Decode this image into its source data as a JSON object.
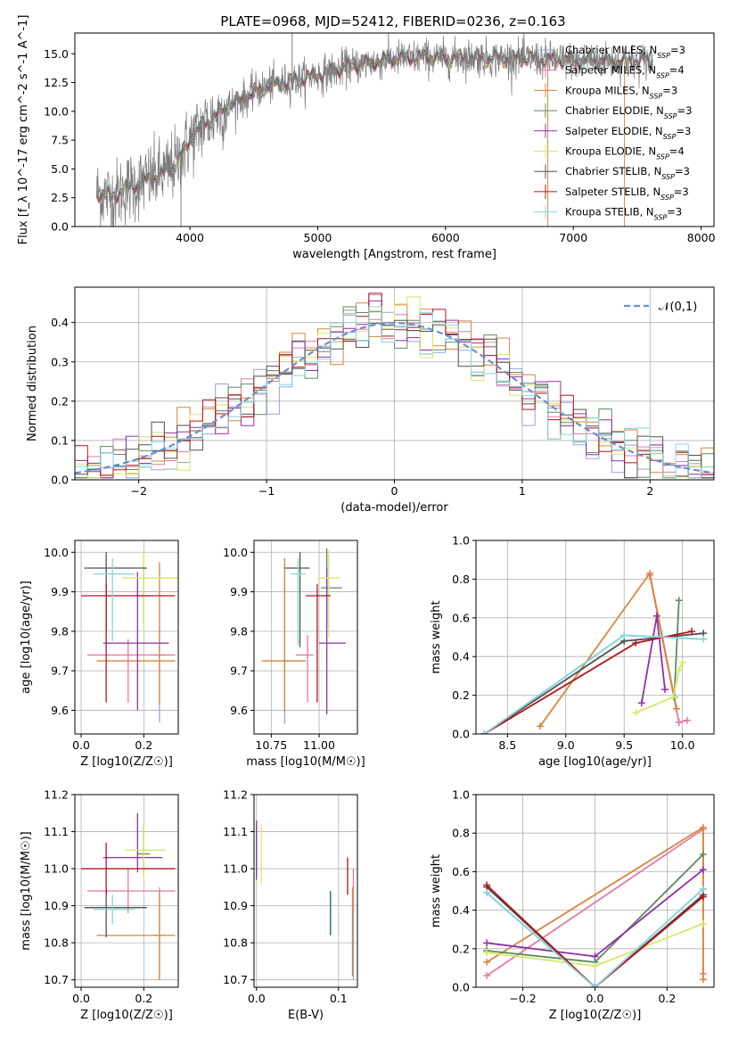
{
  "title": "PLATE=0968, MJD=52412, FIBERID=0236, z=0.163",
  "colors": {
    "Chabrier MILES": "#8fa8cf",
    "Salpeter MILES": "#e27aa8",
    "Kroupa MILES": "#d7853a",
    "Chabrier ELODIE": "#5e8a5e",
    "Salpeter ELODIE": "#9030a8",
    "Kroupa ELODIE": "#d6e86a",
    "Chabrier STELIB": "#505050",
    "Salpeter STELIB": "#b0161c",
    "Kroupa STELIB": "#86d6dc",
    "gauss": "#6a8fd0"
  },
  "chart_data": [
    {
      "type": "line",
      "id": "spectrum",
      "title": "PLATE=0968, MJD=52412, FIBERID=0236, z=0.163",
      "xlabel": "wavelength [Angstrom, rest frame]",
      "ylabel": "Flux [f_λ 10^-17 erg cm^-2 s^-1 A^-1]",
      "xlim": [
        3100,
        8100
      ],
      "ylim": [
        0,
        16.8
      ],
      "xticks": [
        4000,
        5000,
        6000,
        7000,
        8000
      ],
      "yticks": [
        0.0,
        2.5,
        5.0,
        7.5,
        10.0,
        12.5,
        15.0
      ],
      "legend_position": "right",
      "legend": [
        {
          "model": "Chabrier MILES",
          "label": "Chabrier MILES, N",
          "n": "3"
        },
        {
          "model": "Salpeter MILES",
          "label": "Salpeter MILES, N",
          "n": "4"
        },
        {
          "model": "Kroupa MILES",
          "label": "Kroupa MILES, N",
          "n": "3"
        },
        {
          "model": "Chabrier ELODIE",
          "label": "Chabrier ELODIE, N",
          "n": "3"
        },
        {
          "model": "Salpeter ELODIE",
          "label": "Salpeter ELODIE, N",
          "n": "3"
        },
        {
          "model": "Kroupa ELODIE",
          "label": "Kroupa ELODIE, N",
          "n": "4"
        },
        {
          "model": "Chabrier STELIB",
          "label": "Chabrier STELIB, N",
          "n": "3"
        },
        {
          "model": "Salpeter STELIB",
          "label": "Salpeter STELIB, N",
          "n": "3"
        },
        {
          "model": "Kroupa STELIB",
          "label": "Kroupa STELIB, N",
          "n": "3"
        }
      ],
      "n_subscript": "SSP",
      "continuum": {
        "x": [
          3270,
          3400,
          3500,
          3600,
          3700,
          3800,
          3900,
          4000,
          4100,
          4200,
          4300,
          4400,
          4500,
          4600,
          4700,
          4800,
          4900,
          5000,
          5100,
          5200,
          5300,
          5400,
          5500,
          5600,
          5700,
          5800,
          5900,
          6000,
          6200,
          6400,
          6600,
          6800,
          7000,
          7200,
          7400,
          7600
        ],
        "y": [
          2.9,
          2.6,
          3.3,
          3.7,
          4.2,
          4.6,
          5.6,
          7.5,
          8.8,
          9.6,
          10.5,
          11.0,
          11.6,
          12.2,
          12.4,
          12.6,
          12.9,
          13.2,
          13.4,
          13.8,
          14.0,
          14.2,
          14.4,
          14.6,
          14.6,
          14.7,
          14.7,
          14.6,
          14.7,
          14.6,
          14.6,
          14.5,
          14.4,
          14.4,
          14.3,
          14.4
        ]
      },
      "data_range": [
        3270,
        7620
      ]
    },
    {
      "type": "bar",
      "id": "residuals",
      "xlabel": "(data-model)/error",
      "ylabel": "Normed distribution",
      "xlim": [
        -2.5,
        2.5
      ],
      "ylim": [
        0,
        0.49
      ],
      "xticks": [
        -2,
        -1,
        0,
        1,
        2
      ],
      "yticks": [
        0.0,
        0.1,
        0.2,
        0.3,
        0.4
      ],
      "legend_label": "𝒩(0,1)",
      "legend_position": "top-right",
      "bin_width": 0.1,
      "gaussian": {
        "mu": 0,
        "sigma": 1
      }
    },
    {
      "type": "scatter",
      "id": "age-vs-Z",
      "xlabel": "Z [log10(Z/Z☉)]",
      "ylabel": "age [log10(age/yr)]",
      "xlim": [
        -0.02,
        0.31
      ],
      "ylim": [
        9.54,
        10.03
      ],
      "xticks": [
        0.0,
        0.2
      ],
      "yticks": [
        9.6,
        9.7,
        9.8,
        9.9,
        10.0
      ],
      "points": [
        {
          "model": "Chabrier MILES",
          "x": 0.25,
          "y": 9.74,
          "xerr": [
            0.02,
            0.02
          ],
          "yerr": [
            0.17,
            0.07
          ]
        },
        {
          "model": "Salpeter MILES",
          "x": 0.15,
          "y": 9.74,
          "xerr": [
            0.13,
            0.15
          ],
          "yerr": [
            0.12,
            0.04
          ]
        },
        {
          "model": "Kroupa MILES",
          "x": 0.25,
          "y": 9.725,
          "xerr": [
            0.2,
            0.05
          ],
          "yerr": [
            0.11,
            0.25
          ]
        },
        {
          "model": "Chabrier ELODIE",
          "x": 0.2,
          "y": 9.89,
          "xerr": [
            0.02,
            0.02
          ],
          "yerr": [
            0.07,
            0.08
          ]
        },
        {
          "model": "Salpeter ELODIE",
          "x": 0.18,
          "y": 9.77,
          "xerr": [
            0.11,
            0.1
          ],
          "yerr": [
            0.17,
            0.18
          ]
        },
        {
          "model": "Kroupa ELODIE",
          "x": 0.2,
          "y": 9.935,
          "xerr": [
            0.07,
            0.11
          ],
          "yerr": [
            0.14,
            0.07
          ]
        },
        {
          "model": "Chabrier STELIB",
          "x": 0.08,
          "y": 9.96,
          "xerr": [
            0.07,
            0.13
          ],
          "yerr": [
            0.16,
            0.04
          ]
        },
        {
          "model": "Salpeter STELIB",
          "x": 0.08,
          "y": 9.89,
          "xerr": [
            0.08,
            0.22
          ],
          "yerr": [
            0.27,
            0.03
          ]
        },
        {
          "model": "Kroupa STELIB",
          "x": 0.1,
          "y": 9.945,
          "xerr": [
            0.06,
            0.07
          ],
          "yerr": [
            0.17,
            0.04
          ]
        }
      ]
    },
    {
      "type": "scatter",
      "id": "age-vs-mass",
      "xlabel": "mass [log10(M/M☉)]",
      "ylabel": "",
      "xlim": [
        10.66,
        11.2
      ],
      "ylim": [
        9.54,
        10.03
      ],
      "xticks": [
        10.75,
        11.0
      ],
      "xticklabels": [
        "10.75",
        "11.00"
      ],
      "yticks": [
        9.6,
        9.7,
        9.8,
        9.9,
        10.0
      ],
      "points": [
        {
          "model": "Chabrier MILES",
          "x": 10.82,
          "y": 9.725,
          "xerr": [
            0.02,
            0.02
          ],
          "yerr": [
            0.16,
            0.26
          ]
        },
        {
          "model": "Salpeter MILES",
          "x": 10.94,
          "y": 9.74,
          "xerr": [
            0.06,
            0.03
          ],
          "yerr": [
            0.12,
            0.05
          ]
        },
        {
          "model": "Kroupa MILES",
          "x": 10.82,
          "y": 9.725,
          "xerr": [
            0.12,
            0.11
          ],
          "yerr": [
            0.13,
            0.26
          ]
        },
        {
          "model": "Chabrier ELODIE",
          "x": 11.04,
          "y": 9.91,
          "xerr": [
            0.03,
            0.08
          ],
          "yerr": [
            0.09,
            0.1
          ]
        },
        {
          "model": "Salpeter ELODIE",
          "x": 11.04,
          "y": 9.77,
          "xerr": [
            0.04,
            0.1
          ],
          "yerr": [
            0.18,
            0.19
          ]
        },
        {
          "model": "Kroupa ELODIE",
          "x": 11.05,
          "y": 9.935,
          "xerr": [
            0.06,
            0.06
          ],
          "yerr": [
            0.15,
            0.07
          ]
        },
        {
          "model": "Chabrier STELIB",
          "x": 10.9,
          "y": 9.96,
          "xerr": [
            0.08,
            0.05
          ],
          "yerr": [
            0.2,
            0.04
          ]
        },
        {
          "model": "Salpeter STELIB",
          "x": 10.99,
          "y": 9.89,
          "xerr": [
            0.06,
            0.07
          ],
          "yerr": [
            0.27,
            0.03
          ]
        },
        {
          "model": "Kroupa STELIB",
          "x": 10.89,
          "y": 9.945,
          "xerr": [
            0.04,
            0.04
          ],
          "yerr": [
            0.18,
            0.04
          ]
        }
      ]
    },
    {
      "type": "line",
      "id": "massweight-vs-age",
      "xlabel": "age [log10(age/yr)]",
      "ylabel": "mass weight",
      "xlim": [
        8.23,
        10.27
      ],
      "ylim": [
        0,
        1.0
      ],
      "xticks": [
        8.5,
        9.0,
        9.5,
        10.0
      ],
      "yticks": [
        0.0,
        0.2,
        0.4,
        0.6,
        0.8,
        1.0
      ],
      "series": [
        {
          "model": "Chabrier MILES",
          "x": [
            8.3,
            9.5,
            10.18
          ],
          "y": [
            0.0,
            0.51,
            0.49
          ]
        },
        {
          "model": "Salpeter MILES",
          "x": [
            9.72,
            9.97,
            10.04
          ],
          "y": [
            0.82,
            0.06,
            0.07
          ]
        },
        {
          "model": "Kroupa MILES",
          "x": [
            8.78,
            9.72,
            9.95
          ],
          "y": [
            0.04,
            0.83,
            0.13
          ]
        },
        {
          "model": "Chabrier ELODIE",
          "x": [
            9.93,
            9.97
          ],
          "y": [
            0.19,
            0.69
          ]
        },
        {
          "model": "Salpeter ELODIE",
          "x": [
            9.65,
            9.78,
            9.85
          ],
          "y": [
            0.16,
            0.61,
            0.23
          ]
        },
        {
          "model": "Kroupa ELODIE",
          "x": [
            9.6,
            9.92,
            9.97,
            10.0
          ],
          "y": [
            0.11,
            0.19,
            0.33,
            0.37
          ]
        },
        {
          "model": "Chabrier STELIB",
          "x": [
            8.3,
            9.5,
            10.18
          ],
          "y": [
            0.0,
            0.48,
            0.52
          ]
        },
        {
          "model": "Salpeter STELIB",
          "x": [
            8.3,
            9.6,
            10.08
          ],
          "y": [
            0.0,
            0.47,
            0.53
          ]
        },
        {
          "model": "Kroupa STELIB",
          "x": [
            8.3,
            9.5,
            10.18
          ],
          "y": [
            0.0,
            0.51,
            0.49
          ]
        }
      ]
    },
    {
      "type": "scatter",
      "id": "mass-vs-Z",
      "xlabel": "Z [log10(Z/Z☉)]",
      "ylabel": "mass [log10(M/M☉)]",
      "xlim": [
        -0.02,
        0.31
      ],
      "ylim": [
        10.68,
        11.2
      ],
      "xticks": [
        0.0,
        0.2
      ],
      "yticks": [
        10.7,
        10.8,
        10.9,
        11.0,
        11.1,
        11.2
      ],
      "points": [
        {
          "model": "Chabrier MILES",
          "x": 0.25,
          "y": 10.82,
          "xerr": [
            0.02,
            0.02
          ],
          "yerr": [
            0.12,
            0.13
          ]
        },
        {
          "model": "Salpeter MILES",
          "x": 0.15,
          "y": 10.94,
          "xerr": [
            0.13,
            0.15
          ],
          "yerr": [
            0.06,
            0.06
          ]
        },
        {
          "model": "Kroupa MILES",
          "x": 0.25,
          "y": 10.82,
          "xerr": [
            0.2,
            0.05
          ],
          "yerr": [
            0.12,
            0.12
          ]
        },
        {
          "model": "Chabrier ELODIE",
          "x": 0.2,
          "y": 11.04,
          "xerr": [
            0.02,
            0.02
          ],
          "yerr": [
            0.06,
            0.08
          ]
        },
        {
          "model": "Salpeter ELODIE",
          "x": 0.18,
          "y": 11.03,
          "xerr": [
            0.11,
            0.08
          ],
          "yerr": [
            0.04,
            0.12
          ]
        },
        {
          "model": "Kroupa ELODIE",
          "x": 0.2,
          "y": 11.05,
          "xerr": [
            0.06,
            0.07
          ],
          "yerr": [
            0.08,
            0.07
          ]
        },
        {
          "model": "Chabrier STELIB",
          "x": 0.08,
          "y": 10.895,
          "xerr": [
            0.07,
            0.13
          ],
          "yerr": [
            0.08,
            0.05
          ]
        },
        {
          "model": "Salpeter STELIB",
          "x": 0.08,
          "y": 11.0,
          "xerr": [
            0.08,
            0.22
          ],
          "yerr": [
            0.07,
            0.07
          ]
        },
        {
          "model": "Kroupa STELIB",
          "x": 0.1,
          "y": 10.89,
          "xerr": [
            0.06,
            0.07
          ],
          "yerr": [
            0.04,
            0.04
          ]
        }
      ]
    },
    {
      "type": "scatter",
      "id": "mass-vs-ebv",
      "xlabel": "E(B-V)",
      "ylabel": "",
      "xlim": [
        -0.003,
        0.123
      ],
      "ylim": [
        10.68,
        11.2
      ],
      "xticks": [
        0.0,
        0.1
      ],
      "yticks": [
        10.7,
        10.8,
        10.9,
        11.0,
        11.1,
        11.2
      ],
      "points": [
        {
          "model": "Chabrier MILES",
          "x": 0.118,
          "y": 10.81,
          "xerr": [
            0.0,
            0.0
          ],
          "yerr": [
            0.11,
            0.11
          ]
        },
        {
          "model": "Salpeter MILES",
          "x": 0.118,
          "y": 10.94,
          "xerr": [
            0.0,
            0.0
          ],
          "yerr": [
            0.06,
            0.06
          ]
        },
        {
          "model": "Kroupa MILES",
          "x": 0.117,
          "y": 10.83,
          "xerr": [
            0.0,
            0.0
          ],
          "yerr": [
            0.12,
            0.12
          ]
        },
        {
          "model": "Chabrier ELODIE",
          "x": 0.0,
          "y": 11.05,
          "xerr": [
            0.0,
            0.0
          ],
          "yerr": [
            0.07,
            0.07
          ]
        },
        {
          "model": "Salpeter ELODIE",
          "x": 0.0,
          "y": 11.05,
          "xerr": [
            0.0,
            0.0
          ],
          "yerr": [
            0.08,
            0.08
          ]
        },
        {
          "model": "Kroupa ELODIE",
          "x": 0.006,
          "y": 11.04,
          "xerr": [
            0.0,
            0.0
          ],
          "yerr": [
            0.08,
            0.08
          ]
        },
        {
          "model": "Chabrier STELIB",
          "x": 0.09,
          "y": 10.88,
          "xerr": [
            0.0,
            0.0
          ],
          "yerr": [
            0.06,
            0.06
          ]
        },
        {
          "model": "Salpeter STELIB",
          "x": 0.111,
          "y": 10.98,
          "xerr": [
            0.0,
            0.0
          ],
          "yerr": [
            0.05,
            0.05
          ]
        },
        {
          "model": "Kroupa STELIB",
          "x": 0.091,
          "y": 10.88,
          "xerr": [
            0.0,
            0.0
          ],
          "yerr": [
            0.06,
            0.06
          ]
        }
      ]
    },
    {
      "type": "line",
      "id": "massweight-vs-Z",
      "xlabel": "Z [log10(Z/Z☉)]",
      "ylabel": "mass weight",
      "xlim": [
        -0.33,
        0.33
      ],
      "ylim": [
        0,
        1.0
      ],
      "xticks": [
        -0.2,
        0.0,
        0.2
      ],
      "yticks": [
        0.0,
        0.2,
        0.4,
        0.6,
        0.8,
        1.0
      ],
      "series": [
        {
          "model": "Chabrier MILES",
          "x": [
            -0.3,
            0.0,
            0.3
          ],
          "y": [
            0.49,
            0.0,
            0.51
          ]
        },
        {
          "model": "Salpeter MILES",
          "x": [
            -0.3,
            0.3,
            0.3
          ],
          "y": [
            0.06,
            0.82,
            0.07
          ]
        },
        {
          "model": "Kroupa MILES",
          "x": [
            -0.3,
            0.3,
            0.3
          ],
          "y": [
            0.13,
            0.83,
            0.04
          ]
        },
        {
          "model": "Chabrier ELODIE",
          "x": [
            -0.3,
            0.0,
            0.3
          ],
          "y": [
            0.19,
            0.13,
            0.69
          ]
        },
        {
          "model": "Salpeter ELODIE",
          "x": [
            -0.3,
            0.0,
            0.3
          ],
          "y": [
            0.23,
            0.16,
            0.61
          ]
        },
        {
          "model": "Kroupa ELODIE",
          "x": [
            -0.3,
            0.0,
            0.3
          ],
          "y": [
            0.18,
            0.11,
            0.33
          ]
        },
        {
          "model": "Chabrier STELIB",
          "x": [
            -0.3,
            0.0,
            0.3
          ],
          "y": [
            0.52,
            0.0,
            0.48
          ]
        },
        {
          "model": "Salpeter STELIB",
          "x": [
            -0.3,
            0.0,
            0.3
          ],
          "y": [
            0.53,
            0.0,
            0.47
          ]
        },
        {
          "model": "Kroupa STELIB",
          "x": [
            -0.3,
            0.0,
            0.3
          ],
          "y": [
            0.49,
            0.0,
            0.51
          ]
        }
      ]
    }
  ]
}
